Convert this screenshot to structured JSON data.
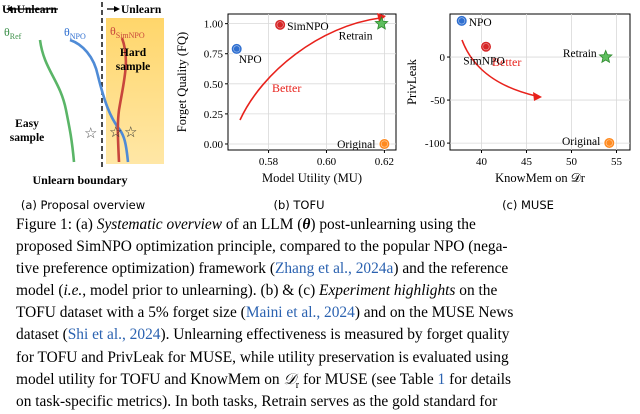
{
  "figure": {
    "panel_a": {
      "caption": "(a) Proposal overview",
      "header_left": "UnUnlearn",
      "header_right": "Unlearn",
      "label_ref": "θRef",
      "label_npo": "θNPO",
      "label_simnpo": "θSimNPO",
      "hard_sample": "Hard sample",
      "easy_sample": "Easy sample",
      "boundary": "Unlearn boundary"
    },
    "panel_b": {
      "caption": "(b) TOFU",
      "better": "Better"
    },
    "panel_c": {
      "caption": "(c) MUSE",
      "better": "Better"
    }
  },
  "chart_data": [
    {
      "type": "scatter",
      "panel": "b",
      "xlabel": "Model Utility (MU)",
      "ylabel": "Forget Quality (FQ)",
      "xlim": [
        0.566,
        0.624
      ],
      "ylim": [
        -0.05,
        1.08
      ],
      "xticks": [
        0.58,
        0.6,
        0.62
      ],
      "yticks": [
        0.0,
        0.25,
        0.5,
        0.75,
        1.0
      ],
      "points": [
        {
          "name": "NPO",
          "x": 0.569,
          "y": 0.79,
          "color": "#2f6fd0",
          "marker": "circle"
        },
        {
          "name": "SimNPO",
          "x": 0.584,
          "y": 0.99,
          "color": "#d62728",
          "marker": "circle"
        },
        {
          "name": "Retrain",
          "x": 0.619,
          "y": 1.0,
          "color": "#44b544",
          "marker": "star"
        },
        {
          "name": "Original",
          "x": 0.62,
          "y": 0.0,
          "color": "#ff8a1f",
          "marker": "circle"
        }
      ]
    },
    {
      "type": "scatter",
      "panel": "c",
      "xlabel": "KnowMem on 𝒟r",
      "ylabel": "PrivLeak",
      "xlim": [
        36.5,
        56.5
      ],
      "ylim": [
        -108,
        50
      ],
      "xticks": [
        40,
        45,
        50,
        55
      ],
      "yticks": [
        -100,
        -50,
        0
      ],
      "points": [
        {
          "name": "NPO",
          "x": 37.8,
          "y": 42,
          "color": "#2f6fd0",
          "marker": "circle"
        },
        {
          "name": "SimNPO",
          "x": 40.5,
          "y": 12,
          "color": "#d62728",
          "marker": "circle"
        },
        {
          "name": "Retrain",
          "x": 53.8,
          "y": 0,
          "color": "#44b544",
          "marker": "star"
        },
        {
          "name": "Original",
          "x": 54.2,
          "y": -99.8,
          "color": "#ff8a1f",
          "marker": "circle"
        }
      ]
    }
  ],
  "caption": {
    "line1": [
      "Figure 1:  (a) ",
      "Systematic overview",
      " of an LLM (",
      "θ",
      ") post-unlearning using the"
    ],
    "line2": [
      "proposed SimNPO optimization principle, compared to the popular NPO (nega-"
    ],
    "line3": [
      "tive preference optimization) framework (",
      "Zhang et al., 2024a",
      ") and the reference"
    ],
    "line4": [
      "model (",
      "i.e.",
      ", model prior to unlearning). (b) & (c) ",
      "Experiment highlights",
      " on the"
    ],
    "line5": [
      "TOFU dataset with a 5% forget size (",
      "Maini et al., 2024",
      ") and on the MUSE News"
    ],
    "line6": [
      "dataset (",
      "Shi et al., 2024",
      "). Unlearning effectiveness is measured by forget quality"
    ],
    "line7": [
      "for TOFU and PrivLeak for MUSE, while utility preservation is evaluated using"
    ],
    "line8": [
      "model utility for TOFU and KnowMem on ",
      "𝒟",
      "r",
      " for MUSE (see Table ",
      "1",
      " for details"
    ],
    "line9": [
      "on task-specific metrics). In both tasks, Retrain serves as the gold standard for"
    ]
  }
}
